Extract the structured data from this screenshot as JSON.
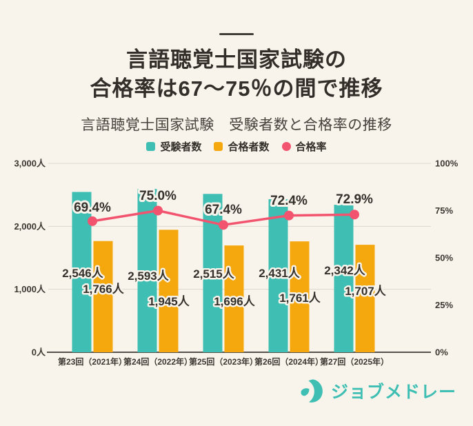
{
  "page": {
    "background": "#f8f4eb"
  },
  "header": {
    "title_line1": "言語聴覚士国家試験の",
    "title_line2": "合格率は67～75％の間で推移",
    "subtitle": "言語聴覚士国家試験　受験者数と合格率の推移"
  },
  "legend": [
    {
      "label": "受験者数",
      "color": "#3fbeb3",
      "shape": "square"
    },
    {
      "label": "合格者数",
      "color": "#f5a80e",
      "shape": "square"
    },
    {
      "label": "合格率",
      "color": "#f2536f",
      "shape": "circle"
    }
  ],
  "chart_data": {
    "type": "bar+line",
    "title": "言語聴覚士国家試験　受験者数と合格率の推移",
    "categories": [
      "第23回（2021年）",
      "第24回（2022年）",
      "第25回（2023年）",
      "第26回（2024年）",
      "第27回（2025年）"
    ],
    "series": [
      {
        "name": "受験者数",
        "type": "bar",
        "axis": "left",
        "color": "#3fbeb3",
        "values": [
          2546,
          2593,
          2515,
          2431,
          2342
        ],
        "labels": [
          "2,546人",
          "2,593人",
          "2,515人",
          "2,431人",
          "2,342人"
        ]
      },
      {
        "name": "合格者数",
        "type": "bar",
        "axis": "left",
        "color": "#f5a80e",
        "values": [
          1766,
          1945,
          1696,
          1761,
          1707
        ],
        "labels": [
          "1,766人",
          "1,945人",
          "1,696人",
          "1,761人",
          "1,707人"
        ]
      },
      {
        "name": "合格率",
        "type": "line",
        "axis": "right",
        "color": "#f2536f",
        "values": [
          69.4,
          75.0,
          67.4,
          72.4,
          72.9
        ],
        "labels": [
          "69.4%",
          "75.0%",
          "67.4%",
          "72.4%",
          "72.9%"
        ]
      }
    ],
    "left_axis": {
      "ticks": [
        "3,000人",
        "2,000人",
        "1,000人",
        "0人"
      ],
      "values": [
        3000,
        2000,
        1000,
        0
      ],
      "max": 3000
    },
    "right_axis": {
      "ticks": [
        "100%",
        "75%",
        "50%",
        "25%",
        "0%"
      ],
      "values": [
        100,
        75,
        50,
        25,
        0
      ],
      "max": 100
    },
    "grid": true,
    "grid_color": "#ddd7cc",
    "axis_color": "#56514b",
    "legend_position": "top"
  },
  "footer": {
    "brand": "ジョブメドレー",
    "brand_color": "#3fbeb3"
  }
}
